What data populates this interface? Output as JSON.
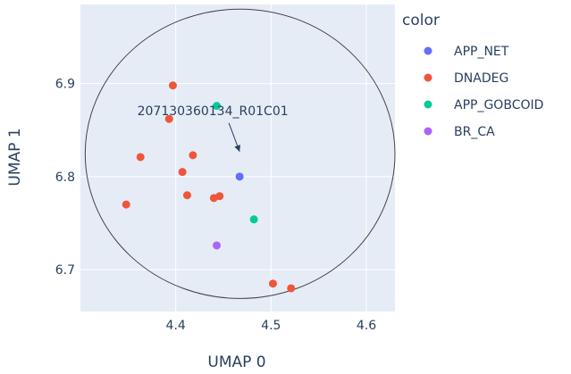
{
  "chart_data": {
    "type": "scatter",
    "xlabel": "UMAP 0",
    "ylabel": "UMAP 1",
    "xlim": [
      4.3,
      4.63
    ],
    "ylim": [
      6.655,
      6.985
    ],
    "x_ticks": [
      "4.4",
      "4.5",
      "4.6"
    ],
    "y_ticks": [
      "6.7",
      "6.8",
      "6.9"
    ],
    "x_tick_values": [
      4.4,
      4.5,
      4.6
    ],
    "y_tick_values": [
      6.7,
      6.8,
      6.9
    ],
    "grid": true,
    "legend": {
      "title": "color",
      "position": "right"
    },
    "series": [
      {
        "name": "APP_NET",
        "color": "#636efa",
        "points": [
          [
            4.467,
            6.8
          ]
        ]
      },
      {
        "name": "DNADEG",
        "color": "#ef553b",
        "points": [
          [
            4.397,
            6.898
          ],
          [
            4.393,
            6.862
          ],
          [
            4.363,
            6.821
          ],
          [
            4.418,
            6.823
          ],
          [
            4.407,
            6.805
          ],
          [
            4.412,
            6.78
          ],
          [
            4.44,
            6.777
          ],
          [
            4.446,
            6.779
          ],
          [
            4.348,
            6.77
          ],
          [
            4.502,
            6.685
          ],
          [
            4.521,
            6.68
          ]
        ]
      },
      {
        "name": "APP_GOBCOID",
        "color": "#00cc96",
        "points": [
          [
            4.443,
            6.876
          ],
          [
            4.482,
            6.754
          ]
        ]
      },
      {
        "name": "BR_CA",
        "color": "#ab63fa",
        "points": [
          [
            4.443,
            6.726
          ]
        ]
      }
    ],
    "annotations": [
      {
        "text": "207130360134_R01C01",
        "point": [
          4.467,
          6.8
        ]
      }
    ],
    "shapes": [
      {
        "type": "circle",
        "x0": 4.305,
        "x1": 4.63,
        "y0": 6.669,
        "y1": 6.98
      }
    ]
  }
}
